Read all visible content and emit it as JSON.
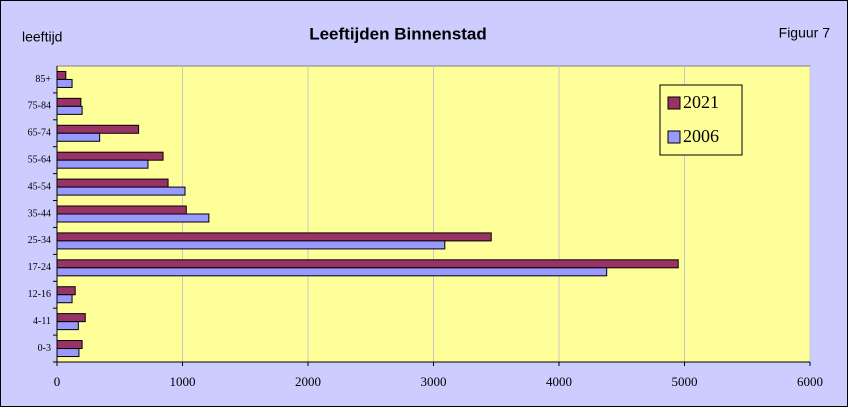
{
  "chart_data": {
    "type": "barh",
    "title": "Leeftijden Binnenstad",
    "y_label": "leeftijd",
    "annotation": "Figuur 7",
    "categories": [
      "0-3",
      "4-11",
      "12-16",
      "17-24",
      "25-34",
      "35-44",
      "45-54",
      "55-64",
      "65-74",
      "75-84",
      "85+"
    ],
    "series": [
      {
        "name": "2021",
        "color": "#993366",
        "values": [
          200,
          225,
          145,
          4950,
          3460,
          1030,
          885,
          845,
          650,
          190,
          70
        ]
      },
      {
        "name": "2006",
        "color": "#9999ff",
        "values": [
          175,
          170,
          120,
          4380,
          3090,
          1210,
          1020,
          725,
          340,
          200,
          120
        ]
      }
    ],
    "xlim": [
      0,
      6000
    ],
    "xticks": [
      0,
      1000,
      2000,
      3000,
      4000,
      5000,
      6000
    ],
    "grid": true,
    "legend": "top-right"
  }
}
